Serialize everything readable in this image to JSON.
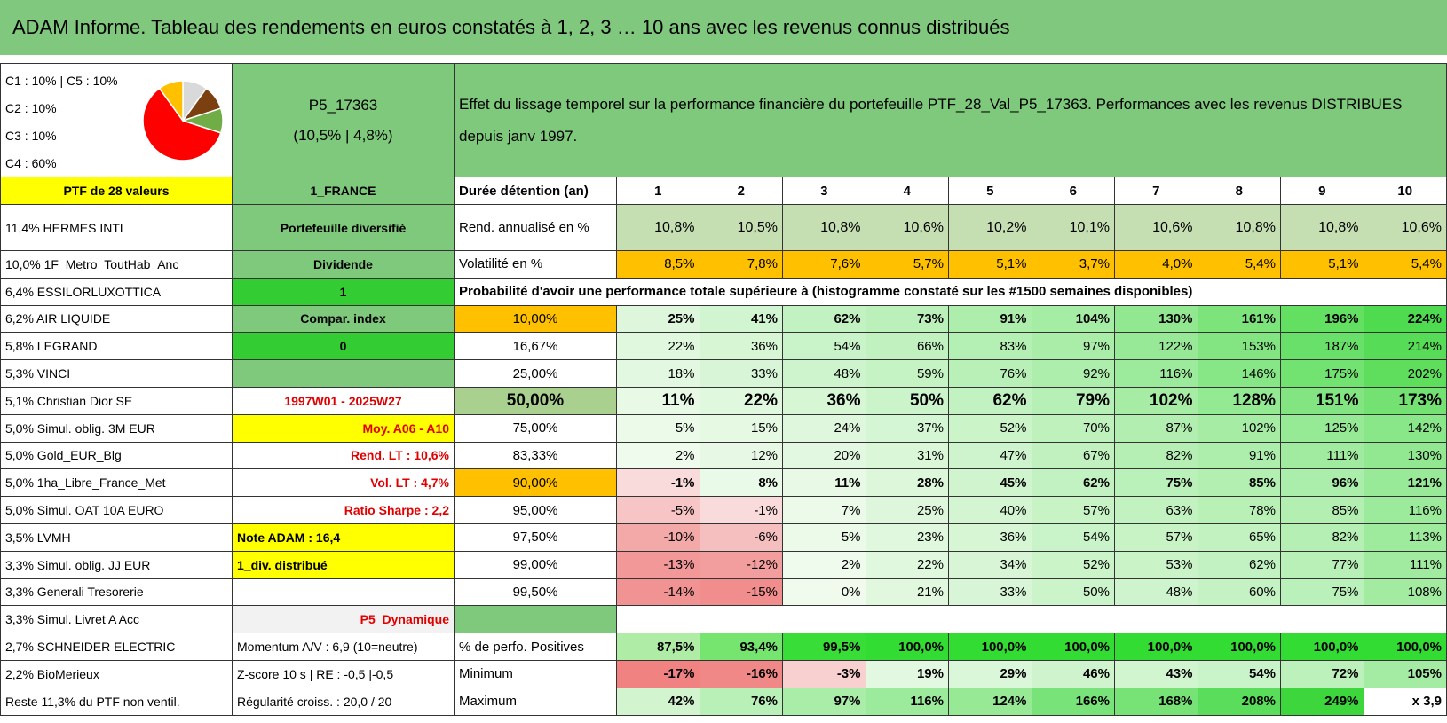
{
  "header": {
    "title": "ADAM Informe. Tableau des rendements en euros constatés à 1, 2, 3 … 10 ans avec les revenus connus distribués"
  },
  "legend": [
    "C1 : 10% | C5 : 10%",
    "C2 : 10%",
    "C3 : 10%",
    "C4 : 60%"
  ],
  "portfolio": {
    "code": "P5_17363",
    "stats": "(10,5% | 4,8%)"
  },
  "description": "Effet du lissage temporel sur la performance financière du portefeuille PTF_28_Val_P5_17363. Performances avec les revenus DISTRIBUES depuis janv 1997.",
  "rows": [
    {
      "holding": "PTF de 28 valeurs",
      "info": "1_FRANCE",
      "label": "Durée détention (an)",
      "values": [
        "1",
        "2",
        "3",
        "4",
        "5",
        "6",
        "7",
        "8",
        "9",
        "10"
      ]
    },
    {
      "holding": "11,4% HERMES INTL",
      "info": "Portefeuille diversifié",
      "label": "Rend. annualisé en %",
      "values": [
        "10,8%",
        "10,5%",
        "10,8%",
        "10,6%",
        "10,2%",
        "10,1%",
        "10,6%",
        "10,8%",
        "10,8%",
        "10,6%"
      ]
    },
    {
      "holding": "10,0% 1F_Metro_ToutHab_Anc",
      "info": "Dividende",
      "label": "Volatilité en %",
      "values": [
        "8,5%",
        "7,8%",
        "7,6%",
        "5,7%",
        "5,1%",
        "3,7%",
        "4,0%",
        "5,4%",
        "5,1%",
        "5,4%"
      ]
    },
    {
      "holding": "6,4% ESSILORLUXOTTICA",
      "info": "1",
      "label": "Probabilité d'avoir une performance totale supérieure à (histogramme constaté sur les #1500 semaines disponibles)"
    },
    {
      "holding": "6,2% AIR LIQUIDE",
      "info": "Compar. index",
      "label": "10,00%",
      "values": [
        "25%",
        "41%",
        "62%",
        "73%",
        "91%",
        "104%",
        "130%",
        "161%",
        "196%",
        "224%"
      ]
    },
    {
      "holding": "5,8% LEGRAND",
      "info": "0",
      "label": "16,67%",
      "values": [
        "22%",
        "36%",
        "54%",
        "66%",
        "83%",
        "97%",
        "122%",
        "153%",
        "187%",
        "214%"
      ]
    },
    {
      "holding": "5,3% VINCI",
      "label": "25,00%",
      "values": [
        "18%",
        "33%",
        "48%",
        "59%",
        "76%",
        "92%",
        "116%",
        "146%",
        "175%",
        "202%"
      ]
    },
    {
      "holding": "5,1% Christian Dior SE",
      "info": "1997W01 - 2025W27",
      "label": "50,00%",
      "values": [
        "11%",
        "22%",
        "36%",
        "50%",
        "62%",
        "79%",
        "102%",
        "128%",
        "151%",
        "173%"
      ]
    },
    {
      "holding": "5,0% Simul. oblig. 3M EUR",
      "info": "Moy. A06 - A10",
      "label": "75,00%",
      "values": [
        "5%",
        "15%",
        "24%",
        "37%",
        "52%",
        "70%",
        "87%",
        "102%",
        "125%",
        "142%"
      ]
    },
    {
      "holding": "5,0% Gold_EUR_Blg",
      "info": "Rend. LT : 10,6%",
      "label": "83,33%",
      "values": [
        "2%",
        "12%",
        "20%",
        "31%",
        "47%",
        "67%",
        "82%",
        "91%",
        "111%",
        "130%"
      ]
    },
    {
      "holding": "5,0% 1ha_Libre_France_Met",
      "info": "Vol. LT : 4,7%",
      "label": "90,00%",
      "values": [
        "-1%",
        "8%",
        "11%",
        "28%",
        "45%",
        "62%",
        "75%",
        "85%",
        "96%",
        "121%"
      ]
    },
    {
      "holding": "5,0% Simul. OAT 10A EURO",
      "info": "Ratio Sharpe : 2,2",
      "label": "95,00%",
      "values": [
        "-5%",
        "-1%",
        "7%",
        "25%",
        "40%",
        "57%",
        "63%",
        "78%",
        "85%",
        "116%"
      ]
    },
    {
      "holding": "3,5% LVMH",
      "info": "Note ADAM : 16,4",
      "label": "97,50%",
      "values": [
        "-10%",
        "-6%",
        "5%",
        "23%",
        "36%",
        "54%",
        "57%",
        "65%",
        "82%",
        "113%"
      ]
    },
    {
      "holding": "3,3% Simul. oblig. JJ EUR",
      "info": "1_div. distribué",
      "label": "99,00%",
      "values": [
        "-13%",
        "-12%",
        "2%",
        "22%",
        "34%",
        "52%",
        "53%",
        "62%",
        "77%",
        "111%"
      ]
    },
    {
      "holding": "3,3% Generali Tresorerie",
      "label": "99,50%",
      "values": [
        "-14%",
        "-15%",
        "0%",
        "21%",
        "33%",
        "50%",
        "48%",
        "60%",
        "75%",
        "108%"
      ]
    },
    {
      "holding": "3,3% Simul. Livret A Acc",
      "info": "P5_Dynamique"
    },
    {
      "holding": "2,7% SCHNEIDER ELECTRIC",
      "info": "Momentum A/V : 6,9 (10=neutre)",
      "label": "% de perfo. Positives",
      "values": [
        "87,5%",
        "93,4%",
        "99,5%",
        "100,0%",
        "100,0%",
        "100,0%",
        "100,0%",
        "100,0%",
        "100,0%",
        "100,0%"
      ]
    },
    {
      "holding": "2,2% BioMerieux",
      "info": "Z-score 10 s | RE : -0,5 |-0,5",
      "label": "Minimum",
      "values": [
        "-17%",
        "-16%",
        "-3%",
        "19%",
        "29%",
        "46%",
        "43%",
        "54%",
        "72%",
        "105%"
      ]
    },
    {
      "holding": "Reste 11,3% du PTF non ventil.",
      "info": "Régularité croiss. : 20,0 / 20",
      "label": "Maximum",
      "values": [
        "42%",
        "76%",
        "97%",
        "116%",
        "124%",
        "166%",
        "168%",
        "208%",
        "249%",
        "x 3,9"
      ]
    }
  ]
}
